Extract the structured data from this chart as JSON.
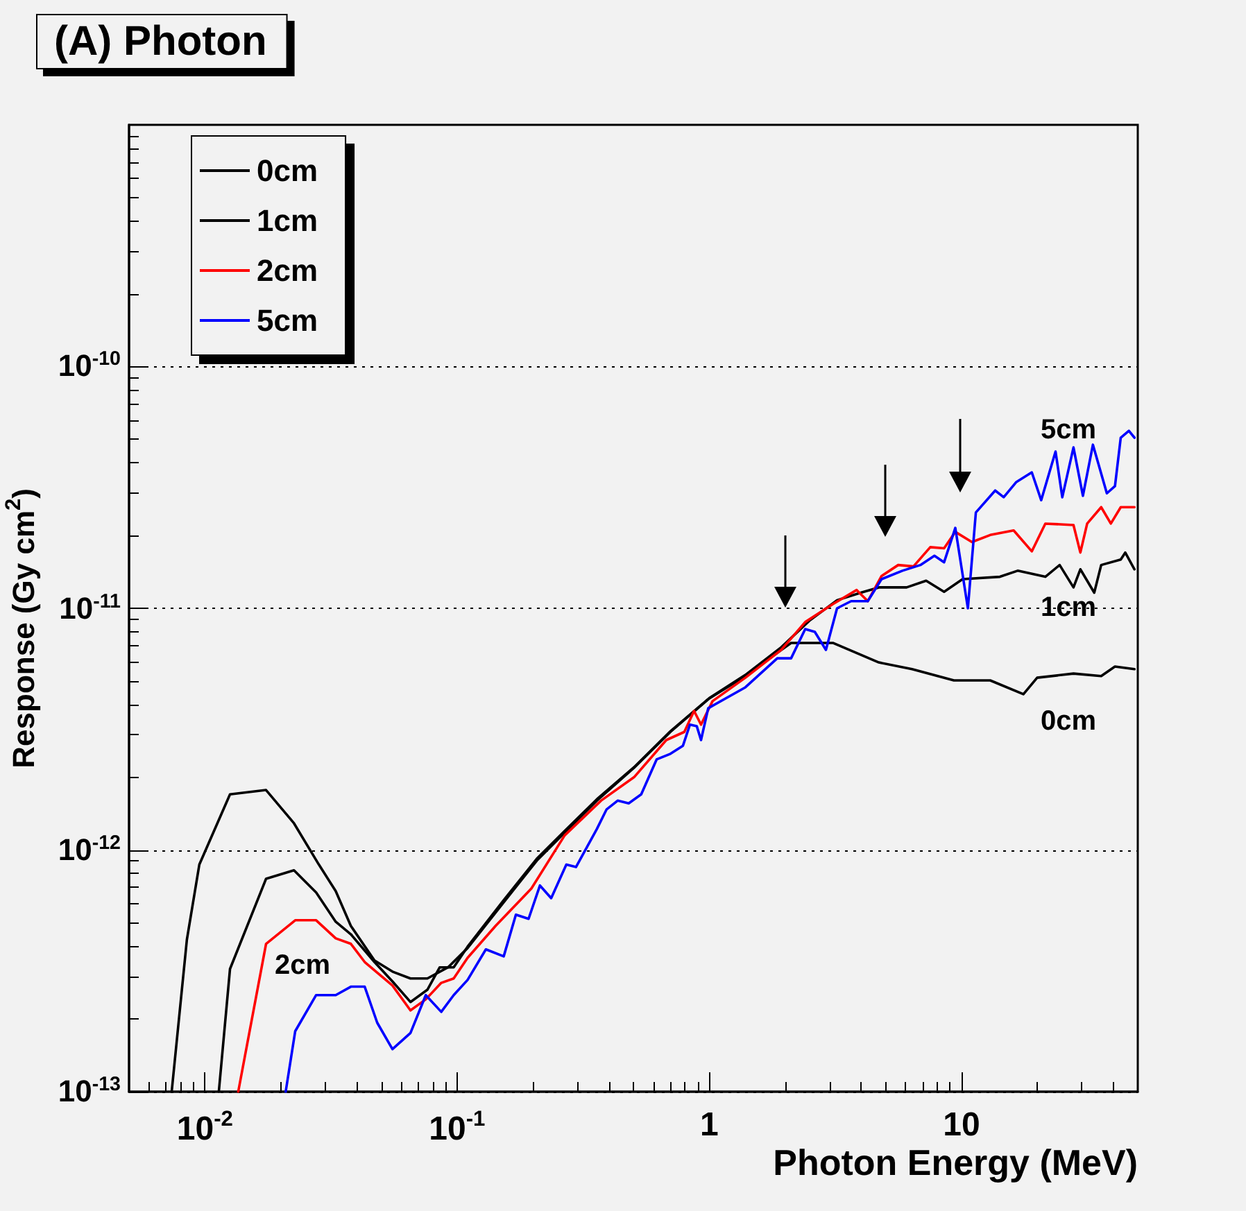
{
  "chart_data": {
    "type": "line",
    "title": "(A) Photon",
    "xlabel": "Photon Energy (MeV)",
    "ylabel": "Response (Gy cm$^{2}$)",
    "log": "xy",
    "grid": "y",
    "legend": "top left",
    "marker": "none",
    "line_style": "solid",
    "xlim": [
      0.005,
      50
    ],
    "ylim": [
      1e-13,
      1e-09
    ],
    "xticks": [
      {
        "value": 0.01,
        "label": "10$^{-2}$"
      },
      {
        "value": 0.1,
        "label": "10$^{-1}$"
      },
      1,
      10
    ],
    "yticks": [
      {
        "value": 1e-13,
        "label": "10$^{-13}$"
      },
      {
        "value": 1e-12,
        "label": "10$^{-12}$"
      },
      {
        "value": 1e-11,
        "label": "10$^{-11}$"
      },
      {
        "value": 1e-10,
        "label": "10$^{-10}$"
      }
    ],
    "series": [
      {
        "name": "0cm",
        "color": "#000000",
        "x": [
          0.00738,
          0.00848,
          0.0095,
          0.01257,
          0.01747,
          0.02254,
          0.0283,
          0.033,
          0.0379,
          0.047,
          0.0554,
          0.0653,
          0.0762,
          0.092,
          0.11,
          0.153,
          0.207,
          0.267,
          0.358,
          0.503,
          0.701,
          1.0,
          1.39,
          1.93,
          2.11,
          3.09,
          4.7,
          6.37,
          9.33,
          13.0,
          17.6,
          19.95,
          27.8,
          35.8,
          40.6,
          48.5
        ],
        "values": [
          1e-13,
          4.26e-13,
          8.7e-13,
          1.7e-12,
          1.77e-12,
          1.29e-12,
          8.7e-13,
          6.76e-13,
          4.85e-13,
          3.49e-13,
          3.14e-13,
          2.94e-13,
          2.94e-13,
          3.27e-13,
          3.93e-13,
          6.08e-13,
          9.04e-13,
          1.18e-12,
          1.6e-12,
          2.19e-12,
          3.08e-12,
          4.24e-12,
          5.24e-12,
          6.73e-12,
          7.19e-12,
          7.19e-12,
          5.97e-12,
          5.6e-12,
          5.03e-12,
          5.03e-12,
          4.41e-12,
          5.16e-12,
          5.37e-12,
          5.24e-12,
          5.74e-12,
          5.6e-12
        ]
      },
      {
        "name": "1cm",
        "color": "#000000",
        "x": [
          0.01135,
          0.01257,
          0.01747,
          0.02254,
          0.0276,
          0.033,
          0.0379,
          0.047,
          0.0554,
          0.0653,
          0.0762,
          0.0853,
          0.0969,
          0.11,
          0.153,
          0.207,
          0.267,
          0.358,
          0.503,
          0.701,
          1.0,
          1.39,
          1.93,
          2.49,
          3.21,
          3.99,
          4.7,
          6.06,
          7.24,
          8.53,
          10.1,
          14.2,
          16.7,
          21.5,
          24.5,
          27.8,
          29.6,
          33.6,
          35.8,
          42.8,
          44.6,
          48.5
        ],
        "values": [
          1e-13,
          3.22e-13,
          7.6e-13,
          8.24e-13,
          6.67e-13,
          5.05e-13,
          4.48e-13,
          3.44e-13,
          2.86e-13,
          2.35e-13,
          2.64e-13,
          3.27e-13,
          3.27e-13,
          3.98e-13,
          6.2e-13,
          9.2e-13,
          1.2e-12,
          1.62e-12,
          2.2e-12,
          3.1e-12,
          4.25e-12,
          5.3e-12,
          6.9e-12,
          8.87e-12,
          1.08e-11,
          1.16e-11,
          1.22e-11,
          1.22e-11,
          1.3e-11,
          1.17e-11,
          1.32e-11,
          1.35e-11,
          1.43e-11,
          1.35e-11,
          1.51e-11,
          1.22e-11,
          1.45e-11,
          1.16e-11,
          1.51e-11,
          1.59e-11,
          1.7e-11,
          1.45e-11
        ]
      },
      {
        "name": "2cm",
        "color": "#ff0000",
        "x": [
          0.01355,
          0.01747,
          0.0228,
          0.0276,
          0.033,
          0.0379,
          0.043,
          0.0554,
          0.0653,
          0.0751,
          0.0865,
          0.0969,
          0.11,
          0.142,
          0.197,
          0.267,
          0.372,
          0.503,
          0.675,
          0.796,
          0.87,
          0.927,
          1.03,
          1.39,
          1.93,
          2.4,
          3.09,
          3.84,
          4.25,
          4.82,
          5.61,
          6.45,
          7.52,
          8.53,
          9.45,
          11.0,
          13.0,
          16.1,
          19.0,
          21.5,
          27.8,
          29.6,
          31.5,
          35.8,
          39.1,
          42.8,
          48.5
        ],
        "values": [
          1e-13,
          4.09e-13,
          5.12e-13,
          5.12e-13,
          4.31e-13,
          4.09e-13,
          3.44e-13,
          2.75e-13,
          2.17e-13,
          2.41e-13,
          2.82e-13,
          2.94e-13,
          3.58e-13,
          4.85e-13,
          6.93e-13,
          1.15e-12,
          1.6e-12,
          2e-12,
          2.85e-12,
          3.08e-12,
          3.76e-12,
          3.3e-12,
          4.13e-12,
          5.16e-12,
          6.73e-12,
          8.77e-12,
          1.04e-11,
          1.19e-11,
          1.07e-11,
          1.36e-11,
          1.51e-11,
          1.49e-11,
          1.79e-11,
          1.77e-11,
          2.07e-11,
          1.88e-11,
          2.01e-11,
          2.1e-11,
          1.72e-11,
          2.24e-11,
          2.21e-11,
          1.7e-11,
          2.24e-11,
          2.62e-11,
          2.24e-11,
          2.62e-11,
          2.62e-11
        ]
      },
      {
        "name": "5cm",
        "color": "#0000ff",
        "x": [
          0.0209,
          0.0228,
          0.0276,
          0.033,
          0.0379,
          0.043,
          0.0482,
          0.0554,
          0.0653,
          0.0751,
          0.0865,
          0.0969,
          0.11,
          0.13,
          0.153,
          0.171,
          0.192,
          0.213,
          0.236,
          0.271,
          0.296,
          0.358,
          0.391,
          0.433,
          0.479,
          0.537,
          0.618,
          0.701,
          0.786,
          0.838,
          0.892,
          0.927,
          0.99,
          1.39,
          1.86,
          2.11,
          2.4,
          2.62,
          2.9,
          3.21,
          3.65,
          4.25,
          4.82,
          5.83,
          6.87,
          7.81,
          8.53,
          9.45,
          10.6,
          11.4,
          13.6,
          14.7,
          16.5,
          19.0,
          20.7,
          23.6,
          25.1,
          27.8,
          30.3,
          33.2,
          37.7,
          40.6,
          42.8,
          46.1,
          48.5
        ],
        "values": [
          1e-13,
          1.78e-13,
          2.51e-13,
          2.51e-13,
          2.72e-13,
          2.72e-13,
          1.93e-13,
          1.5e-13,
          1.75e-13,
          2.51e-13,
          2.14e-13,
          2.51e-13,
          2.9e-13,
          3.88e-13,
          3.63e-13,
          5.4e-13,
          5.19e-13,
          7.13e-13,
          6.32e-13,
          8.7e-13,
          8.5e-13,
          1.22e-12,
          1.47e-12,
          1.6e-12,
          1.56e-12,
          1.7e-12,
          2.37e-12,
          2.5e-12,
          2.7e-12,
          3.3e-12,
          3.25e-12,
          2.85e-12,
          3.86e-12,
          4.71e-12,
          6.21e-12,
          6.21e-12,
          8.2e-12,
          7.99e-12,
          6.73e-12,
          1e-11,
          1.07e-11,
          1.07e-11,
          1.32e-11,
          1.43e-11,
          1.51e-11,
          1.65e-11,
          1.55e-11,
          2.15e-11,
          1e-11,
          2.49e-11,
          3.07e-11,
          2.88e-11,
          3.33e-11,
          3.65e-11,
          2.8e-11,
          4.45e-11,
          2.88e-11,
          4.63e-11,
          2.92e-11,
          4.75e-11,
          2.99e-11,
          3.2e-11,
          5.08e-11,
          5.42e-11,
          5.08e-11
        ]
      }
    ],
    "annotations": [
      "5cm",
      "1cm",
      "0cm",
      "2cm"
    ]
  }
}
